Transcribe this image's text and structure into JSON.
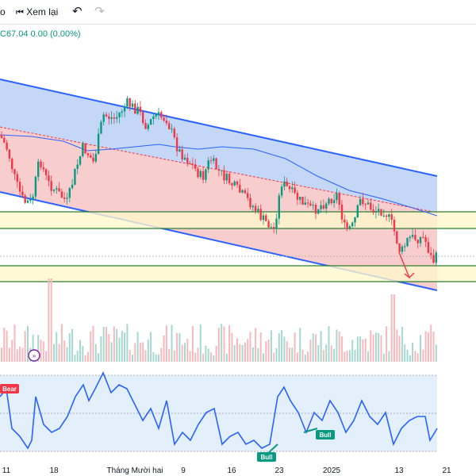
{
  "toolbar": {
    "partial_label": "o",
    "rewind_label": "Xem lại",
    "rewind_icon": "rewind-icon",
    "undo_icon": "undo-icon",
    "redo_icon": "redo-icon"
  },
  "legend": {
    "values": "C67.04  0.00 (0.00%)"
  },
  "x_labels": [
    "11",
    "18",
    "Tháng Mười hai",
    "9",
    "16",
    "23",
    "2025",
    "13",
    "21"
  ],
  "markers": {
    "bear": "Bear",
    "bull_1": "Bull",
    "bull_2": "Bull"
  },
  "colors": {
    "up": "#089981",
    "down": "#f23645",
    "line": "#2962ff",
    "channel_upper": "#bbd0f5",
    "channel_lower": "#f6c4c6",
    "zone": "#fff8cc",
    "zone_line": "#2e7d32",
    "rsi_bg": "#e3f0fb"
  },
  "chart_data": {
    "type": "candlestick",
    "close_last": 67.04,
    "change": 0.0,
    "change_pct": "0.00%",
    "oscillator": {
      "name": "",
      "markers": [
        "Bear",
        "Bull",
        "Bull"
      ]
    }
  }
}
